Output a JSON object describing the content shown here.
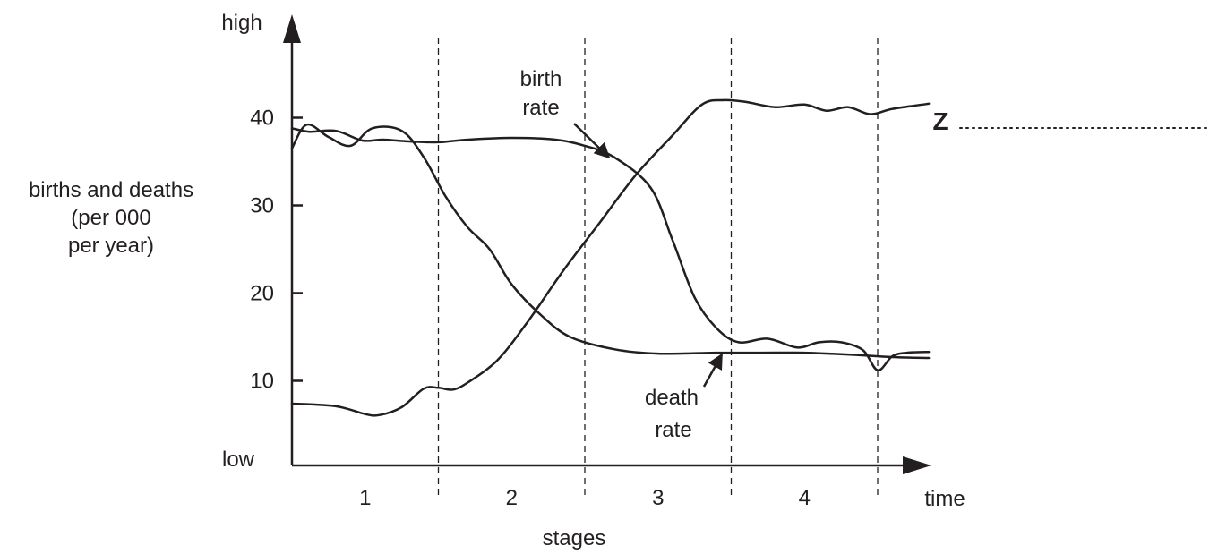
{
  "chart_data": {
    "type": "line",
    "title": "",
    "xlabel": "stages",
    "x_end_label": "time",
    "ylabel_lines": [
      "births and deaths",
      "(per 000",
      "per year)"
    ],
    "y_high_label": "high",
    "y_low_label": "low",
    "yticks": [
      10,
      20,
      30,
      40
    ],
    "ylim": [
      0,
      50
    ],
    "stages": [
      "1",
      "2",
      "3",
      "4"
    ],
    "xlim": [
      0,
      4.35
    ],
    "grid": false,
    "stage_boundaries": "dashed",
    "series": [
      {
        "name": "birth rate",
        "label_lines": [
          "birth",
          "rate"
        ],
        "x": [
          0,
          0.12,
          0.3,
          0.48,
          0.62,
          0.8,
          1.0,
          1.2,
          1.5,
          1.8,
          2.0,
          2.2,
          2.45,
          2.6,
          2.75,
          2.9,
          3.05,
          3.25,
          3.45,
          3.6,
          3.75,
          3.9,
          4.0,
          4.1,
          4.2,
          4.35
        ],
        "values": [
          38.8,
          38.4,
          38.5,
          37.4,
          37.5,
          37.3,
          37.2,
          37.5,
          37.7,
          37.5,
          36.8,
          35.5,
          32,
          26,
          19.5,
          16,
          14.4,
          14.8,
          13.8,
          14.4,
          14.4,
          13.5,
          11.2,
          12.8,
          13.2,
          13.3
        ]
      },
      {
        "name": "death rate",
        "label_lines": [
          "death",
          "rate"
        ],
        "x": [
          0,
          0.1,
          0.25,
          0.4,
          0.55,
          0.75,
          0.9,
          1.05,
          1.2,
          1.35,
          1.5,
          1.7,
          1.9,
          2.2,
          2.5,
          2.9,
          3.2,
          3.5,
          3.8,
          4.1,
          4.35
        ],
        "values": [
          36.5,
          39.2,
          37.8,
          36.8,
          38.8,
          38.5,
          35.5,
          31,
          27.5,
          25,
          21,
          17.5,
          15,
          13.6,
          13.1,
          13.2,
          13.2,
          13.2,
          13,
          12.7,
          12.6
        ]
      },
      {
        "name": "",
        "end_label": "Z",
        "x": [
          0,
          0.3,
          0.5,
          0.6,
          0.75,
          0.9,
          1.0,
          1.1,
          1.2,
          1.4,
          1.6,
          1.85,
          2.1,
          2.35,
          2.6,
          2.8,
          2.95,
          3.1,
          3.3,
          3.5,
          3.65,
          3.8,
          3.95,
          4.1,
          4.35
        ],
        "values": [
          7.4,
          7.1,
          6.2,
          6.1,
          7,
          9.1,
          9.2,
          9,
          9.8,
          12.3,
          16.5,
          22.5,
          28,
          33.5,
          38,
          41.5,
          42,
          41.8,
          41.2,
          41.5,
          40.8,
          41.2,
          40.4,
          41.0,
          41.6
        ]
      }
    ]
  }
}
